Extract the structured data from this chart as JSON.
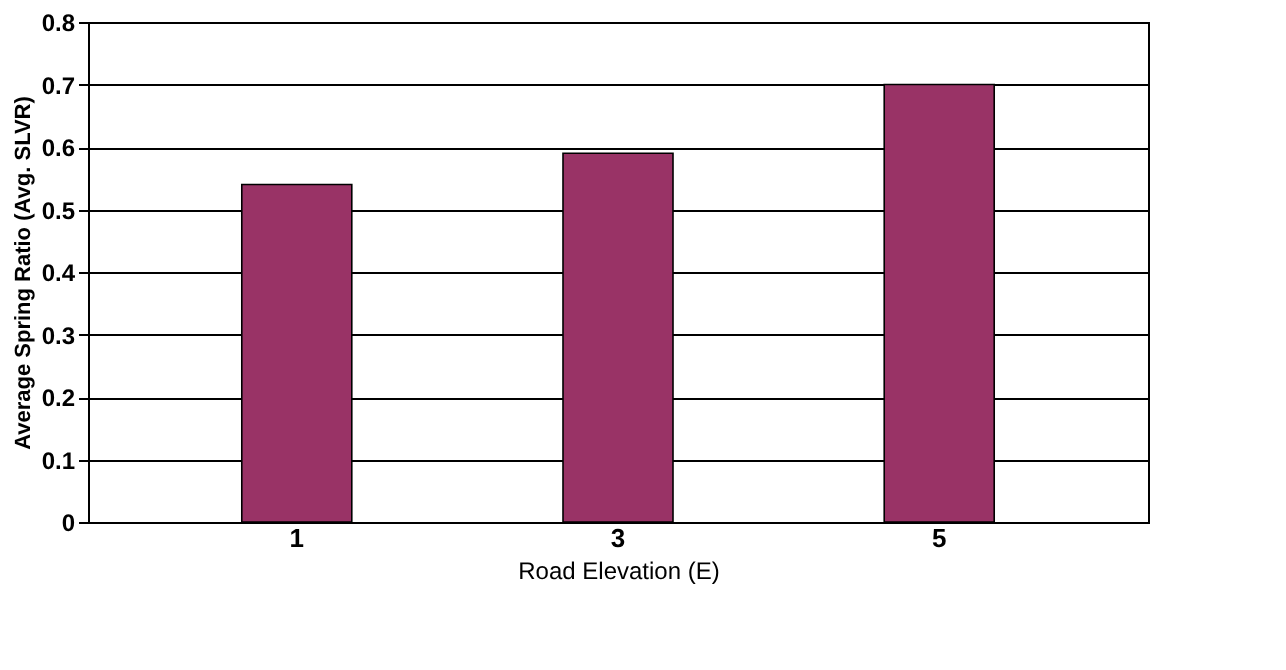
{
  "chart_data": {
    "type": "bar",
    "xlabel": "Road Elevation (E)",
    "ylabel": "Average Spring Ratio (Avg. SLVR)",
    "categories": [
      "1",
      "3",
      "5"
    ],
    "values": [
      0.54,
      0.59,
      0.7
    ],
    "color": "#993366",
    "ylim": [
      0,
      0.8
    ],
    "yticks": [
      0,
      0.1,
      0.2,
      0.3,
      0.4,
      0.5,
      0.6,
      0.7,
      0.8
    ],
    "grid": "y"
  }
}
